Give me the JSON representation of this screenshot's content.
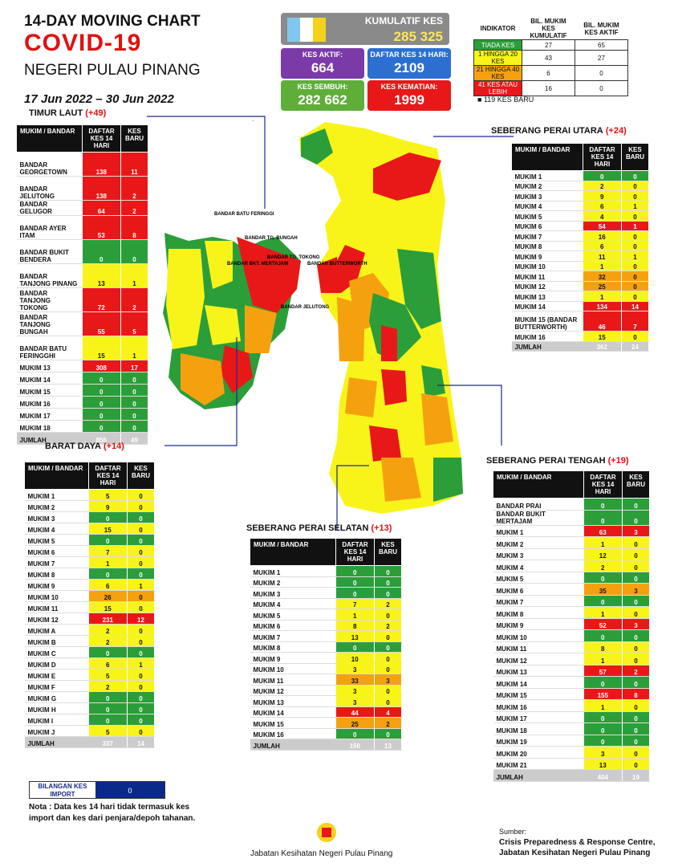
{
  "header": {
    "line1": "14-DAY MOVING CHART",
    "line2": "COVID-19",
    "line3": "NEGERI PULAU PINANG",
    "dates": "17 Jun 2022 – 30 Jun 2022"
  },
  "summary": {
    "kumulatif_label": "KUMULATIF KES",
    "kumulatif": "285 325",
    "aktif_label": "KES AKTIF:",
    "aktif": "664",
    "daftar_label": "DAFTAR KES 14 HARI:",
    "daftar": "2109",
    "sembuh_label": "KES SEMBUH:",
    "sembuh": "282 662",
    "kematian_label": "KES KEMATIAN:",
    "kematian": "1999"
  },
  "indicator": {
    "headers": [
      "INDIKATOR",
      "BIL. MUKIM KES KUMULATIF",
      "BIL. MUKIM KES AKTIF"
    ],
    "rows": [
      {
        "label": "TIADA KES",
        "a": "27",
        "b": "65",
        "cls": "g"
      },
      {
        "label": "1 HINGGA 20 KES",
        "a": "43",
        "b": "27",
        "cls": "y"
      },
      {
        "label": "21 HINGGA 40 KES",
        "a": "6",
        "b": "0",
        "cls": "o"
      },
      {
        "label": "41 KES ATAU LEBIH",
        "a": "16",
        "b": "0",
        "cls": "r"
      }
    ],
    "new_cases": "119 KES BARU"
  },
  "col_headers": {
    "mukim": "MUKIM / BANDAR",
    "daftar": "DAFTAR KES 14 HARI",
    "baru": "KES BARU"
  },
  "timur_laut": {
    "title": "TIMUR LAUT",
    "delta": "(+49)",
    "rows": [
      [
        "BANDAR GEORGETOWN",
        "138",
        "11"
      ],
      [
        "BANDAR JELUTONG",
        "138",
        "2"
      ],
      [
        "BANDAR GELUGOR",
        "64",
        "2"
      ],
      [
        "BANDAR AYER ITAM",
        "53",
        "8"
      ],
      [
        "BANDAR BUKIT BENDERA",
        "0",
        "0"
      ],
      [
        "BANDAR TANJONG PINANG",
        "13",
        "1"
      ],
      [
        "BANDAR TANJONG TOKONG",
        "72",
        "2"
      ],
      [
        "BANDAR TANJONG BUNGAH",
        "55",
        "5"
      ],
      [
        "BANDAR BATU FERINGGHI",
        "15",
        "1"
      ],
      [
        "MUKIM 13",
        "308",
        "17"
      ],
      [
        "MUKIM 14",
        "0",
        "0"
      ],
      [
        "MUKIM 15",
        "0",
        "0"
      ],
      [
        "MUKIM 16",
        "0",
        "0"
      ],
      [
        "MUKIM 17",
        "0",
        "0"
      ],
      [
        "MUKIM 18",
        "0",
        "0"
      ]
    ],
    "total": [
      "JUMLAH",
      "856",
      "49"
    ]
  },
  "barat_daya": {
    "title": "BARAT DAYA",
    "delta": "(+14)",
    "rows": [
      [
        "MUKIM 1",
        "5",
        "0"
      ],
      [
        "MUKIM 2",
        "9",
        "0"
      ],
      [
        "MUKIM 3",
        "0",
        "0"
      ],
      [
        "MUKIM 4",
        "15",
        "0"
      ],
      [
        "MUKIM 5",
        "0",
        "0"
      ],
      [
        "MUKIM 6",
        "7",
        "0"
      ],
      [
        "MUKIM 7",
        "1",
        "0"
      ],
      [
        "MUKIM 8",
        "0",
        "0"
      ],
      [
        "MUKIM 9",
        "6",
        "1"
      ],
      [
        "MUKIM 10",
        "26",
        "0"
      ],
      [
        "MUKIM 11",
        "15",
        "0"
      ],
      [
        "MUKIM 12",
        "231",
        "12"
      ],
      [
        "MUKIM A",
        "2",
        "0"
      ],
      [
        "MUKIM B",
        "2",
        "0"
      ],
      [
        "MUKIM C",
        "0",
        "0"
      ],
      [
        "MUKIM D",
        "6",
        "1"
      ],
      [
        "MUKIM E",
        "5",
        "0"
      ],
      [
        "MUKIM F",
        "2",
        "0"
      ],
      [
        "MUKIM G",
        "0",
        "0"
      ],
      [
        "MUKIM H",
        "0",
        "0"
      ],
      [
        "MUKIM I",
        "0",
        "0"
      ],
      [
        "MUKIM J",
        "5",
        "0"
      ]
    ],
    "total": [
      "JUMLAH",
      "337",
      "14"
    ]
  },
  "spu": {
    "title": "SEBERANG PERAI UTARA",
    "delta": "(+24)",
    "rows": [
      [
        "MUKIM 1",
        "0",
        "0"
      ],
      [
        "MUKIM 2",
        "2",
        "0"
      ],
      [
        "MUKIM 3",
        "9",
        "0"
      ],
      [
        "MUKIM 4",
        "6",
        "1"
      ],
      [
        "MUKIM 5",
        "4",
        "0"
      ],
      [
        "MUKIM 6",
        "54",
        "1"
      ],
      [
        "MUKIM 7",
        "16",
        "0"
      ],
      [
        "MUKIM 8",
        "6",
        "0"
      ],
      [
        "MUKIM 9",
        "11",
        "1"
      ],
      [
        "MUKIM 10",
        "1",
        "0"
      ],
      [
        "MUKIM 11",
        "32",
        "0"
      ],
      [
        "MUKIM 12",
        "25",
        "0"
      ],
      [
        "MUKIM 13",
        "1",
        "0"
      ],
      [
        "MUKIM 14",
        "134",
        "14"
      ],
      [
        "MUKIM 15 (BANDAR BUTTERWORTH)",
        "46",
        "7"
      ],
      [
        "MUKIM 16",
        "15",
        "0"
      ]
    ],
    "total": [
      "JUMLAH",
      "362",
      "24"
    ]
  },
  "sps": {
    "title": "SEBERANG PERAI SELATAN",
    "delta": "(+13)",
    "rows": [
      [
        "MUKIM 1",
        "0",
        "0"
      ],
      [
        "MUKIM 2",
        "0",
        "0"
      ],
      [
        "MUKIM 3",
        "0",
        "0"
      ],
      [
        "MUKIM 4",
        "7",
        "2"
      ],
      [
        "MUKIM 5",
        "1",
        "0"
      ],
      [
        "MUKIM 6",
        "8",
        "2"
      ],
      [
        "MUKIM 7",
        "13",
        "0"
      ],
      [
        "MUKIM 8",
        "0",
        "0"
      ],
      [
        "MUKIM 9",
        "10",
        "0"
      ],
      [
        "MUKIM 10",
        "3",
        "0"
      ],
      [
        "MUKIM 11",
        "33",
        "3"
      ],
      [
        "MUKIM 12",
        "3",
        "0"
      ],
      [
        "MUKIM 13",
        "3",
        "0"
      ],
      [
        "MUKIM 14",
        "44",
        "4"
      ],
      [
        "MUKIM 15",
        "25",
        "2"
      ],
      [
        "MUKIM 16",
        "0",
        "0"
      ]
    ],
    "total": [
      "JUMLAH",
      "150",
      "13"
    ]
  },
  "spt": {
    "title": "SEBERANG PERAI TENGAH",
    "delta": "(+19)",
    "rows": [
      [
        "BANDAR PRAI",
        "0",
        "0"
      ],
      [
        "BANDAR BUKIT MERTAJAM",
        "0",
        "0"
      ],
      [
        "MUKIM 1",
        "63",
        "3"
      ],
      [
        "MUKIM 2",
        "1",
        "0"
      ],
      [
        "MUKIM 3",
        "12",
        "0"
      ],
      [
        "MUKIM 4",
        "2",
        "0"
      ],
      [
        "MUKIM 5",
        "0",
        "0"
      ],
      [
        "MUKIM 6",
        "35",
        "3"
      ],
      [
        "MUKIM 7",
        "0",
        "0"
      ],
      [
        "MUKIM 8",
        "1",
        "0"
      ],
      [
        "MUKIM 9",
        "52",
        "3"
      ],
      [
        "MUKIM 10",
        "0",
        "0"
      ],
      [
        "MUKIM 11",
        "8",
        "0"
      ],
      [
        "MUKIM 12",
        "1",
        "0"
      ],
      [
        "MUKIM 13",
        "57",
        "2"
      ],
      [
        "MUKIM 14",
        "0",
        "0"
      ],
      [
        "MUKIM 15",
        "155",
        "8"
      ],
      [
        "MUKIM 16",
        "1",
        "0"
      ],
      [
        "MUKIM 17",
        "0",
        "0"
      ],
      [
        "MUKIM 18",
        "0",
        "0"
      ],
      [
        "MUKIM 19",
        "0",
        "0"
      ],
      [
        "MUKIM 20",
        "3",
        "0"
      ],
      [
        "MUKIM 21",
        "13",
        "0"
      ]
    ],
    "total": [
      "JUMLAH",
      "404",
      "19"
    ]
  },
  "import": {
    "label": "BILANGAN KES IMPORT",
    "value": "0"
  },
  "note": "Nota : Data kes 14 hari tidak termasuk kes import dan kes dari penjara/depoh tahanan.",
  "footer": {
    "agency": "Jabatan Kesihatan Negeri Pulau Pinang",
    "source_label": "Sumber:",
    "source1": "Crisis Preparedness & Response Centre,",
    "source2": "Jabatan Kesihatan Negeri Pulau Pinang"
  },
  "map_labels": [
    "BANDAR BATU FERINGGI",
    "BANDAR TG. BUNGAH",
    "BANDAR TG. TOKONG",
    "BANDAR JELUTONG",
    "BANDAR BUTTERWORTH",
    "BANDAR BKT. MERTAJAM"
  ],
  "colors": {
    "green": "#2b9e3a",
    "yellow": "#f8f41a",
    "orange": "#f5a10f",
    "red": "#e81818"
  }
}
